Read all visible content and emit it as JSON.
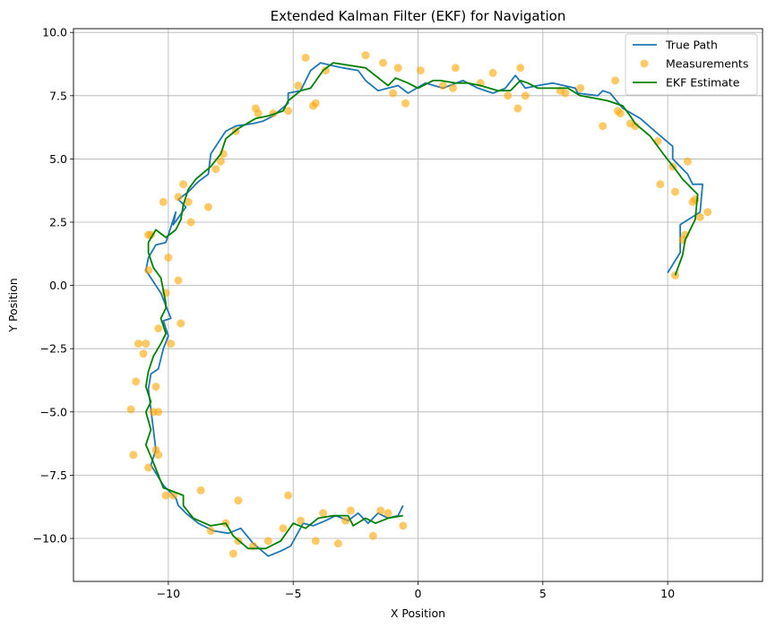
{
  "chart_data": {
    "type": "line",
    "title": "Extended Kalman Filter (EKF) for Navigation",
    "xlabel": "X Position",
    "ylabel": "Y Position",
    "xlim": [
      -13.8,
      13.8
    ],
    "ylim": [
      -11.7,
      10.15
    ],
    "xticks": [
      -10,
      -5,
      0,
      5,
      10
    ],
    "yticks": [
      -10.0,
      -7.5,
      -5.0,
      -2.5,
      0.0,
      2.5,
      5.0,
      7.5,
      10.0
    ],
    "xtick_labels": [
      "−10",
      "−5",
      "0",
      "5",
      "10"
    ],
    "ytick_labels": [
      "−10.0",
      "−7.5",
      "−5.0",
      "−2.5",
      "0.0",
      "2.5",
      "5.0",
      "7.5",
      "10.0"
    ],
    "grid": true,
    "legend_position": "top-right",
    "series": [
      {
        "name": "True Path",
        "kind": "line",
        "color": "#1f77b4",
        "points": [
          [
            10.0,
            0.5
          ],
          [
            10.5,
            1.3
          ],
          [
            10.5,
            2.4
          ],
          [
            11.3,
            2.9
          ],
          [
            11.4,
            4.0
          ],
          [
            11.0,
            4.0
          ],
          [
            10.8,
            4.4
          ],
          [
            10.2,
            5.0
          ],
          [
            10.2,
            5.5
          ],
          [
            9.6,
            6.0
          ],
          [
            8.9,
            6.6
          ],
          [
            8.2,
            7.0
          ],
          [
            7.7,
            7.6
          ],
          [
            7.4,
            7.7
          ],
          [
            7.2,
            7.5
          ],
          [
            6.4,
            7.6
          ],
          [
            6.3,
            7.8
          ],
          [
            5.4,
            8.0
          ],
          [
            4.8,
            7.9
          ],
          [
            4.3,
            7.8
          ],
          [
            3.9,
            8.3
          ],
          [
            3.5,
            7.8
          ],
          [
            3.0,
            7.6
          ],
          [
            2.4,
            7.8
          ],
          [
            1.8,
            8.1
          ],
          [
            1.0,
            7.8
          ],
          [
            0.3,
            8.0
          ],
          [
            -0.4,
            7.6
          ],
          [
            -0.8,
            7.9
          ],
          [
            -1.6,
            7.7
          ],
          [
            -2.1,
            8.1
          ],
          [
            -2.4,
            8.5
          ],
          [
            -3.0,
            8.6
          ],
          [
            -3.5,
            8.7
          ],
          [
            -3.9,
            8.8
          ],
          [
            -4.3,
            8.5
          ],
          [
            -4.7,
            7.7
          ],
          [
            -5.2,
            7.6
          ],
          [
            -5.2,
            7.2
          ],
          [
            -5.8,
            6.7
          ],
          [
            -6.2,
            6.5
          ],
          [
            -6.6,
            6.4
          ],
          [
            -7.3,
            6.3
          ],
          [
            -7.7,
            6.1
          ],
          [
            -8.3,
            5.2
          ],
          [
            -8.4,
            4.4
          ],
          [
            -8.8,
            4.1
          ],
          [
            -9.2,
            3.7
          ],
          [
            -9.6,
            3.4
          ],
          [
            -9.3,
            3.1
          ],
          [
            -9.8,
            2.4
          ],
          [
            -9.7,
            2.9
          ],
          [
            -10.1,
            1.7
          ],
          [
            -10.5,
            1.6
          ],
          [
            -10.8,
            1.1
          ],
          [
            -10.9,
            0.6
          ],
          [
            -10.3,
            -0.3
          ],
          [
            -10.1,
            -0.8
          ],
          [
            -9.9,
            -1.3
          ],
          [
            -10.2,
            -1.4
          ],
          [
            -10.0,
            -2.0
          ],
          [
            -10.2,
            -2.5
          ],
          [
            -10.4,
            -3.3
          ],
          [
            -10.7,
            -3.5
          ],
          [
            -10.8,
            -4.1
          ],
          [
            -10.7,
            -4.9
          ],
          [
            -10.6,
            -5.7
          ],
          [
            -10.5,
            -6.5
          ],
          [
            -10.7,
            -7.1
          ],
          [
            -10.2,
            -7.9
          ],
          [
            -9.7,
            -8.4
          ],
          [
            -9.6,
            -8.7
          ],
          [
            -9.3,
            -9.0
          ],
          [
            -8.8,
            -9.4
          ],
          [
            -8.2,
            -9.7
          ],
          [
            -7.6,
            -9.8
          ],
          [
            -7.1,
            -9.6
          ],
          [
            -6.6,
            -10.2
          ],
          [
            -6.0,
            -10.7
          ],
          [
            -5.5,
            -10.5
          ],
          [
            -5.1,
            -10.3
          ],
          [
            -4.6,
            -9.4
          ],
          [
            -4.2,
            -9.5
          ],
          [
            -3.7,
            -9.3
          ],
          [
            -3.3,
            -9.1
          ],
          [
            -2.8,
            -9.3
          ],
          [
            -2.4,
            -9.0
          ],
          [
            -2.0,
            -9.4
          ],
          [
            -1.6,
            -9.0
          ],
          [
            -1.2,
            -9.2
          ],
          [
            -0.8,
            -9.1
          ],
          [
            -0.6,
            -8.7
          ]
        ]
      },
      {
        "name": "Measurements",
        "kind": "scatter",
        "color": "#ffa500",
        "points": [
          [
            10.3,
            0.4
          ],
          [
            10.6,
            1.8
          ],
          [
            10.7,
            2.0
          ],
          [
            11.1,
            3.4
          ],
          [
            11.0,
            3.3
          ],
          [
            11.6,
            2.9
          ],
          [
            11.3,
            2.7
          ],
          [
            10.3,
            3.7
          ],
          [
            9.7,
            4.0
          ],
          [
            10.2,
            4.7
          ],
          [
            10.8,
            4.9
          ],
          [
            9.6,
            5.7
          ],
          [
            8.5,
            6.4
          ],
          [
            8.7,
            6.3
          ],
          [
            7.4,
            6.3
          ],
          [
            8.0,
            6.9
          ],
          [
            8.1,
            6.8
          ],
          [
            7.9,
            8.1
          ],
          [
            6.5,
            7.8
          ],
          [
            5.7,
            7.7
          ],
          [
            5.9,
            7.6
          ],
          [
            4.3,
            7.5
          ],
          [
            4.0,
            7.0
          ],
          [
            4.1,
            8.6
          ],
          [
            3.6,
            7.5
          ],
          [
            3.0,
            8.4
          ],
          [
            2.5,
            8.0
          ],
          [
            1.5,
            8.6
          ],
          [
            1.4,
            7.8
          ],
          [
            1.0,
            7.9
          ],
          [
            0.1,
            8.5
          ],
          [
            -0.5,
            7.2
          ],
          [
            -0.8,
            8.6
          ],
          [
            -1.0,
            7.6
          ],
          [
            -1.4,
            8.8
          ],
          [
            -2.1,
            9.1
          ],
          [
            -3.7,
            8.5
          ],
          [
            -4.5,
            9.0
          ],
          [
            -4.8,
            7.9
          ],
          [
            -4.2,
            7.1
          ],
          [
            -4.1,
            7.2
          ],
          [
            -5.2,
            6.9
          ],
          [
            -5.8,
            6.8
          ],
          [
            -6.4,
            6.8
          ],
          [
            -6.5,
            7.0
          ],
          [
            -7.3,
            6.1
          ],
          [
            -7.8,
            5.2
          ],
          [
            -7.9,
            4.9
          ],
          [
            -8.1,
            4.6
          ],
          [
            -8.4,
            3.1
          ],
          [
            -9.4,
            4.0
          ],
          [
            -9.2,
            3.3
          ],
          [
            -9.6,
            3.5
          ],
          [
            -9.1,
            2.5
          ],
          [
            -10.2,
            3.3
          ],
          [
            -10.8,
            2.0
          ],
          [
            -10.7,
            2.0
          ],
          [
            -10.0,
            1.1
          ],
          [
            -10.8,
            0.6
          ],
          [
            -9.6,
            0.2
          ],
          [
            -10.1,
            -0.3
          ],
          [
            -9.5,
            -1.5
          ],
          [
            -10.4,
            -1.7
          ],
          [
            -9.9,
            -2.3
          ],
          [
            -10.9,
            -2.3
          ],
          [
            -11.0,
            -2.7
          ],
          [
            -11.2,
            -2.3
          ],
          [
            -11.3,
            -3.8
          ],
          [
            -10.5,
            -4.0
          ],
          [
            -10.6,
            -5.0
          ],
          [
            -10.4,
            -5.0
          ],
          [
            -11.5,
            -4.9
          ],
          [
            -10.5,
            -6.5
          ],
          [
            -10.4,
            -6.7
          ],
          [
            -11.4,
            -6.7
          ],
          [
            -10.8,
            -7.2
          ],
          [
            -10.1,
            -8.3
          ],
          [
            -9.8,
            -8.3
          ],
          [
            -8.7,
            -8.1
          ],
          [
            -8.3,
            -9.7
          ],
          [
            -7.7,
            -9.4
          ],
          [
            -7.2,
            -8.5
          ],
          [
            -7.2,
            -10.1
          ],
          [
            -7.4,
            -10.6
          ],
          [
            -6.6,
            -10.3
          ],
          [
            -6.0,
            -10.1
          ],
          [
            -5.4,
            -9.6
          ],
          [
            -5.2,
            -8.3
          ],
          [
            -4.7,
            -9.3
          ],
          [
            -4.1,
            -10.1
          ],
          [
            -3.8,
            -9.0
          ],
          [
            -3.2,
            -10.2
          ],
          [
            -2.7,
            -8.9
          ],
          [
            -2.9,
            -9.3
          ],
          [
            -1.8,
            -9.9
          ],
          [
            -1.5,
            -8.9
          ],
          [
            -1.2,
            -9.0
          ],
          [
            -0.6,
            -9.5
          ]
        ]
      },
      {
        "name": "EKF Estimate",
        "kind": "line",
        "color": "#008000",
        "points": [
          [
            10.3,
            0.4
          ],
          [
            10.6,
            1.2
          ],
          [
            10.7,
            1.8
          ],
          [
            11.1,
            2.6
          ],
          [
            11.2,
            3.6
          ],
          [
            10.9,
            3.9
          ],
          [
            10.6,
            4.2
          ],
          [
            10.3,
            4.6
          ],
          [
            9.9,
            5.1
          ],
          [
            9.3,
            5.9
          ],
          [
            8.7,
            6.4
          ],
          [
            8.5,
            6.7
          ],
          [
            8.2,
            7.1
          ],
          [
            7.6,
            7.3
          ],
          [
            7.1,
            7.4
          ],
          [
            6.5,
            7.5
          ],
          [
            6.0,
            7.8
          ],
          [
            5.3,
            7.8
          ],
          [
            4.8,
            7.8
          ],
          [
            4.4,
            8.0
          ],
          [
            4.1,
            8.1
          ],
          [
            3.7,
            7.7
          ],
          [
            3.2,
            7.7
          ],
          [
            2.5,
            7.9
          ],
          [
            2.0,
            8.0
          ],
          [
            1.5,
            8.0
          ],
          [
            0.9,
            8.1
          ],
          [
            0.6,
            8.1
          ],
          [
            0.0,
            7.8
          ],
          [
            -0.4,
            8.0
          ],
          [
            -0.9,
            8.2
          ],
          [
            -1.2,
            7.9
          ],
          [
            -2.1,
            8.6
          ],
          [
            -3.4,
            8.8
          ],
          [
            -3.8,
            8.5
          ],
          [
            -4.3,
            7.8
          ],
          [
            -4.7,
            7.7
          ],
          [
            -5.2,
            7.3
          ],
          [
            -5.4,
            6.9
          ],
          [
            -6.0,
            6.7
          ],
          [
            -6.5,
            6.6
          ],
          [
            -7.2,
            6.2
          ],
          [
            -7.7,
            5.8
          ],
          [
            -7.9,
            5.2
          ],
          [
            -8.3,
            4.7
          ],
          [
            -8.9,
            4.2
          ],
          [
            -9.2,
            3.8
          ],
          [
            -9.4,
            3.2
          ],
          [
            -9.5,
            2.6
          ],
          [
            -9.7,
            2.2
          ],
          [
            -10.1,
            1.9
          ],
          [
            -10.5,
            2.2
          ],
          [
            -10.8,
            1.7
          ],
          [
            -10.8,
            1.3
          ],
          [
            -10.6,
            0.7
          ],
          [
            -10.3,
            0.3
          ],
          [
            -10.1,
            -0.7
          ],
          [
            -10.1,
            -0.9
          ],
          [
            -10.3,
            -1.3
          ],
          [
            -10.1,
            -1.9
          ],
          [
            -10.3,
            -2.3
          ],
          [
            -10.6,
            -2.8
          ],
          [
            -10.8,
            -3.4
          ],
          [
            -10.9,
            -4.0
          ],
          [
            -10.7,
            -4.6
          ],
          [
            -10.9,
            -5.0
          ],
          [
            -10.7,
            -5.7
          ],
          [
            -10.9,
            -6.3
          ],
          [
            -10.6,
            -7.0
          ],
          [
            -10.2,
            -8.0
          ],
          [
            -9.4,
            -8.3
          ],
          [
            -9.4,
            -8.7
          ],
          [
            -9.0,
            -9.2
          ],
          [
            -8.3,
            -9.5
          ],
          [
            -7.7,
            -9.4
          ],
          [
            -7.4,
            -9.9
          ],
          [
            -6.8,
            -10.4
          ],
          [
            -6.1,
            -10.4
          ],
          [
            -5.5,
            -10.1
          ],
          [
            -5.0,
            -9.4
          ],
          [
            -4.5,
            -9.6
          ],
          [
            -4.0,
            -9.2
          ],
          [
            -3.4,
            -9.1
          ],
          [
            -2.8,
            -9.1
          ],
          [
            -2.6,
            -9.5
          ],
          [
            -2.1,
            -9.2
          ],
          [
            -1.7,
            -9.4
          ],
          [
            -1.2,
            -9.2
          ],
          [
            -0.6,
            -9.1
          ]
        ]
      }
    ]
  }
}
